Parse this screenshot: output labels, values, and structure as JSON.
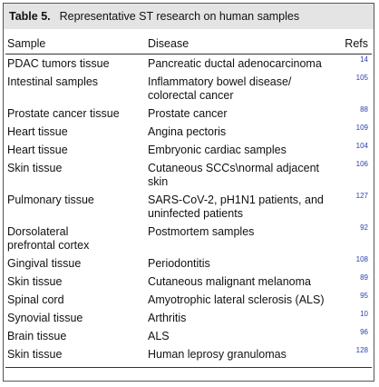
{
  "table": {
    "label": "Table 5.",
    "title": "Representative ST research on human samples",
    "header": [
      "Sample",
      "Disease",
      "Refs"
    ],
    "rows": [
      [
        [
          "PDAC tumors tissue"
        ],
        [
          "Pancreatic ductal adenocarcinoma"
        ],
        "14"
      ],
      [
        [
          "Intestinal samples"
        ],
        [
          "Inflammatory bowel disease/",
          "colorectal cancer"
        ],
        "105"
      ],
      [
        [
          "Prostate cancer tissue"
        ],
        [
          "Prostate cancer"
        ],
        "88"
      ],
      [
        [
          "Heart tissue"
        ],
        [
          "Angina pectoris"
        ],
        "109"
      ],
      [
        [
          "Heart tissue"
        ],
        [
          "Embryonic cardiac samples"
        ],
        "104"
      ],
      [
        [
          "Skin tissue"
        ],
        [
          "Cutaneous SCCs\\normal adjacent skin"
        ],
        "106"
      ],
      [
        [
          "Pulmonary tissue"
        ],
        [
          "SARS-CoV-2, pH1N1 patients, and",
          "uninfected patients"
        ],
        "127"
      ],
      [
        [
          "Dorsolateral",
          "prefrontal cortex"
        ],
        [
          "Postmortem samples"
        ],
        "92"
      ],
      [
        [
          "Gingival tissue"
        ],
        [
          "Periodontitis"
        ],
        "108"
      ],
      [
        [
          "Skin tissue"
        ],
        [
          "Cutaneous malignant melanoma"
        ],
        "89"
      ],
      [
        [
          "Spinal cord"
        ],
        [
          "Amyotrophic lateral sclerosis (ALS)"
        ],
        "95"
      ],
      [
        [
          "Synovial tissue"
        ],
        [
          "Arthritis"
        ],
        "10"
      ],
      [
        [
          "Brain tissue"
        ],
        [
          "ALS"
        ],
        "96"
      ],
      [
        [
          "Skin tissue"
        ],
        [
          "Human leprosy granulomas"
        ],
        "128"
      ]
    ]
  }
}
